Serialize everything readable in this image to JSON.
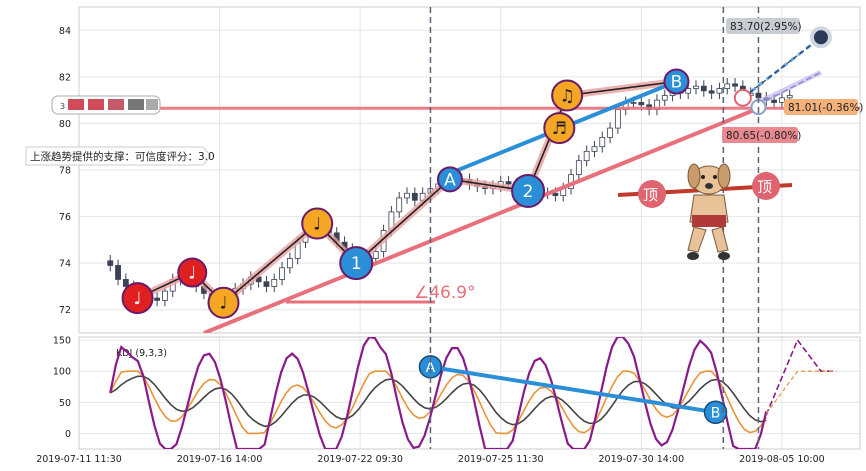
{
  "chart_data": [
    {
      "type": "candlestick",
      "panel": "price",
      "ylim": [
        71,
        85
      ],
      "y_ticks": [
        72,
        74,
        76,
        78,
        80,
        82,
        84
      ],
      "x_tick_labels": [
        "2019-07-11 11:30",
        "2019-07-16 14:00",
        "2019-07-22 09:30",
        "2019-07-25 11:30",
        "2019-07-30 14:00",
        "2019-08-05 10:00"
      ],
      "x_range": [
        0,
        100
      ],
      "x_tick_positions": [
        0,
        18,
        36,
        54,
        72,
        90
      ],
      "grid": true,
      "close_series": [
        [
          4,
          73.9
        ],
        [
          5,
          73.3
        ],
        [
          6,
          73.0
        ],
        [
          7,
          72.7
        ],
        [
          8,
          72.6
        ],
        [
          9,
          72.5
        ],
        [
          10,
          72.4
        ],
        [
          11,
          72.8
        ],
        [
          12,
          73.3
        ],
        [
          13,
          73.5
        ],
        [
          14,
          73.4
        ],
        [
          15,
          73.0
        ],
        [
          16,
          72.7
        ],
        [
          17,
          72.5
        ],
        [
          18,
          72.6
        ],
        [
          19,
          72.7
        ],
        [
          20,
          72.9
        ],
        [
          21,
          73.1
        ],
        [
          22,
          73.4
        ],
        [
          23,
          73.2
        ],
        [
          24,
          73.0
        ],
        [
          25,
          73.3
        ],
        [
          26,
          73.8
        ],
        [
          27,
          74.2
        ],
        [
          28,
          74.9
        ],
        [
          29,
          75.3
        ],
        [
          30,
          75.4
        ],
        [
          31,
          75.5
        ],
        [
          32,
          75.3
        ],
        [
          33,
          74.9
        ],
        [
          34,
          74.6
        ],
        [
          35,
          74.2
        ],
        [
          36,
          74.1
        ],
        [
          37,
          74.2
        ],
        [
          38,
          74.5
        ],
        [
          39,
          75.4
        ],
        [
          40,
          76.2
        ],
        [
          41,
          76.8
        ],
        [
          42,
          77.0
        ],
        [
          43,
          76.7
        ],
        [
          44,
          77.0
        ],
        [
          45,
          77.2
        ],
        [
          46,
          77.4
        ],
        [
          47,
          77.5
        ],
        [
          48,
          77.6
        ],
        [
          49,
          77.6
        ],
        [
          50,
          77.4
        ],
        [
          51,
          77.3
        ],
        [
          52,
          77.2
        ],
        [
          53,
          77.3
        ],
        [
          54,
          77.5
        ],
        [
          55,
          77.4
        ],
        [
          56,
          77.3
        ],
        [
          57,
          77.2
        ],
        [
          58,
          77.1
        ],
        [
          59,
          77.0
        ],
        [
          60,
          77.0
        ],
        [
          61,
          76.9
        ],
        [
          62,
          77.2
        ],
        [
          63,
          77.8
        ],
        [
          64,
          78.4
        ],
        [
          65,
          78.8
        ],
        [
          66,
          79.0
        ],
        [
          67,
          79.4
        ],
        [
          68,
          79.8
        ],
        [
          69,
          80.6
        ],
        [
          70,
          80.9
        ],
        [
          71,
          80.9
        ],
        [
          72,
          80.8
        ],
        [
          73,
          80.6
        ],
        [
          74,
          81.0
        ],
        [
          75,
          81.2
        ],
        [
          76,
          81.4
        ],
        [
          77,
          81.3
        ],
        [
          78,
          81.5
        ],
        [
          79,
          81.6
        ],
        [
          80,
          81.4
        ],
        [
          81,
          81.3
        ],
        [
          82,
          81.5
        ],
        [
          83,
          81.7
        ],
        [
          84,
          81.6
        ],
        [
          85,
          81.2
        ],
        [
          86,
          81.3
        ],
        [
          87,
          81.1
        ],
        [
          88,
          81.0
        ],
        [
          89,
          80.9
        ],
        [
          90,
          81.1
        ],
        [
          91,
          81.2
        ]
      ],
      "wave_points": [
        {
          "label": "♩",
          "x": 7.5,
          "y": 72.5
        },
        {
          "label": "♩",
          "x": 14.5,
          "y": 73.6
        },
        {
          "label": "♩",
          "x": 18.5,
          "y": 72.3
        },
        {
          "label": "♩",
          "x": 30.5,
          "y": 75.7
        },
        {
          "label": "1",
          "x": 35.5,
          "y": 74.0
        },
        {
          "label": "A",
          "x": 47.5,
          "y": 77.6
        },
        {
          "label": "2",
          "x": 57.5,
          "y": 77.1
        },
        {
          "label": "♬",
          "x": 61.5,
          "y": 79.8
        },
        {
          "label": "♫",
          "x": 62.5,
          "y": 81.2
        },
        {
          "label": "B",
          "x": 76.5,
          "y": 81.8
        }
      ],
      "support_line_level": 80.65,
      "support_line_label": "80.65(-0.80%)",
      "current_price_label": "81.01(-0.36%)",
      "target_label": "83.70(2.95%)",
      "target_price": 83.7,
      "trend_angle_label": "∠46.9°",
      "annotation_support": "上涨趋势提供的支撑：可信度评分：3.0",
      "tops_label": "顶",
      "vertical_markers_x": [
        45,
        82.5,
        87
      ],
      "legend_tag": "3"
    },
    {
      "type": "line",
      "panel": "indicator",
      "title": "KDJ (9,3,3)",
      "ylim": [
        -25,
        155
      ],
      "y_ticks": [
        0,
        50,
        100,
        150
      ],
      "series": [
        {
          "name": "K",
          "color": "#e8943a"
        },
        {
          "name": "D",
          "color": "#444444"
        },
        {
          "name": "J",
          "color": "#8a1a8a"
        }
      ],
      "divergence": [
        {
          "label": "A",
          "x": 45,
          "y": 107
        },
        {
          "label": "B",
          "x": 81.5,
          "y": 34
        }
      ]
    }
  ]
}
